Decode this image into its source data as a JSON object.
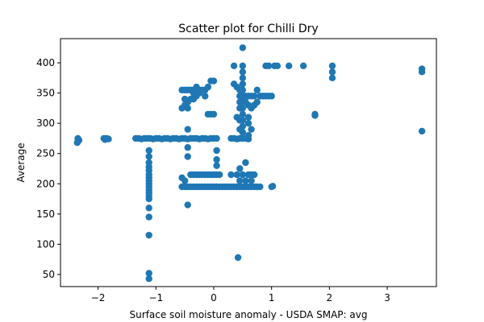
{
  "chart_data": {
    "type": "scatter",
    "title": "Scatter plot for Chilli Dry",
    "xlabel": "Surface soil moisture anomaly  - USDA SMAP: avg",
    "ylabel": "Average",
    "xlim": [
      -2.65,
      3.85
    ],
    "ylim": [
      30,
      440
    ],
    "xticks": [
      -2,
      -1,
      0,
      1,
      2,
      3
    ],
    "yticks": [
      50,
      100,
      150,
      200,
      250,
      300,
      350,
      400
    ],
    "grid": false,
    "marker_color": "#1f77b4",
    "series": [
      {
        "points": [
          [
            -2.35,
            270
          ],
          [
            -2.35,
            275
          ],
          [
            -2.33,
            272
          ],
          [
            -2.36,
            268
          ],
          [
            -1.9,
            275
          ],
          [
            -1.88,
            273
          ],
          [
            -1.85,
            275
          ],
          [
            -1.82,
            274
          ],
          [
            -1.35,
            275
          ],
          [
            -1.3,
            275
          ],
          [
            -1.25,
            274
          ],
          [
            -1.2,
            275
          ],
          [
            -1.15,
            275
          ],
          [
            -1.1,
            275
          ],
          [
            -1.05,
            274
          ],
          [
            -1.0,
            275
          ],
          [
            -0.95,
            275
          ],
          [
            -0.9,
            274
          ],
          [
            -0.85,
            275
          ],
          [
            -0.8,
            275
          ],
          [
            -0.75,
            274
          ],
          [
            -0.7,
            275
          ],
          [
            -0.65,
            275
          ],
          [
            -0.6,
            274
          ],
          [
            -0.55,
            275
          ],
          [
            -0.5,
            275
          ],
          [
            -0.45,
            274
          ],
          [
            -0.4,
            275
          ],
          [
            -0.35,
            275
          ],
          [
            -0.3,
            275
          ],
          [
            -0.25,
            274
          ],
          [
            -0.2,
            275
          ],
          [
            -0.15,
            275
          ],
          [
            -0.1,
            274
          ],
          [
            -0.05,
            275
          ],
          [
            0.0,
            275
          ],
          [
            0.05,
            275
          ],
          [
            0.3,
            275
          ],
          [
            0.35,
            275
          ],
          [
            0.4,
            274
          ],
          [
            0.45,
            275
          ],
          [
            0.5,
            275
          ],
          [
            0.55,
            275
          ],
          [
            0.6,
            274
          ],
          [
            -1.12,
            255
          ],
          [
            -1.12,
            245
          ],
          [
            -1.12,
            235
          ],
          [
            -1.12,
            228
          ],
          [
            -1.12,
            222
          ],
          [
            -1.12,
            215
          ],
          [
            -1.12,
            210
          ],
          [
            -1.12,
            205
          ],
          [
            -1.12,
            200
          ],
          [
            -1.12,
            195
          ],
          [
            -1.12,
            190
          ],
          [
            -1.12,
            185
          ],
          [
            -1.12,
            180
          ],
          [
            -1.12,
            175
          ],
          [
            -1.12,
            160
          ],
          [
            -1.12,
            145
          ],
          [
            -1.12,
            115
          ],
          [
            -1.12,
            52
          ],
          [
            -1.12,
            43
          ],
          [
            -0.55,
            195
          ],
          [
            -0.5,
            195
          ],
          [
            -0.45,
            195
          ],
          [
            -0.4,
            195
          ],
          [
            -0.35,
            195
          ],
          [
            -0.3,
            195
          ],
          [
            -0.25,
            195
          ],
          [
            -0.2,
            195
          ],
          [
            -0.15,
            195
          ],
          [
            -0.1,
            195
          ],
          [
            -0.05,
            195
          ],
          [
            0.0,
            195
          ],
          [
            0.05,
            195
          ],
          [
            0.1,
            195
          ],
          [
            0.15,
            195
          ],
          [
            0.2,
            195
          ],
          [
            0.25,
            195
          ],
          [
            0.3,
            195
          ],
          [
            0.35,
            195
          ],
          [
            0.4,
            195
          ],
          [
            0.45,
            195
          ],
          [
            0.5,
            195
          ],
          [
            0.55,
            195
          ],
          [
            0.6,
            195
          ],
          [
            0.65,
            195
          ],
          [
            0.7,
            195
          ],
          [
            0.75,
            195
          ],
          [
            0.8,
            195
          ],
          [
            1.0,
            195
          ],
          [
            1.02,
            196
          ],
          [
            -0.4,
            215
          ],
          [
            -0.35,
            215
          ],
          [
            -0.3,
            215
          ],
          [
            -0.25,
            215
          ],
          [
            -0.2,
            215
          ],
          [
            -0.15,
            215
          ],
          [
            -0.1,
            215
          ],
          [
            -0.05,
            215
          ],
          [
            0.0,
            215
          ],
          [
            0.05,
            215
          ],
          [
            0.1,
            215
          ],
          [
            0.3,
            215
          ],
          [
            0.4,
            215
          ],
          [
            0.5,
            215
          ],
          [
            0.6,
            215
          ],
          [
            0.7,
            215
          ],
          [
            -0.45,
            165
          ],
          [
            0.42,
            78
          ],
          [
            -0.55,
            210
          ],
          [
            -0.5,
            205
          ],
          [
            -0.45,
            245
          ],
          [
            -0.45,
            260
          ],
          [
            -0.45,
            290
          ],
          [
            0.05,
            255
          ],
          [
            0.05,
            240
          ],
          [
            0.05,
            230
          ],
          [
            0.45,
            225
          ],
          [
            0.55,
            235
          ],
          [
            0.65,
            215
          ],
          [
            0.65,
            205
          ],
          [
            0.55,
            205
          ],
          [
            0.45,
            205
          ],
          [
            -0.55,
            325
          ],
          [
            -0.5,
            330
          ],
          [
            -0.45,
            325
          ],
          [
            -0.45,
            335
          ],
          [
            -0.5,
            340
          ],
          [
            -0.4,
            340
          ],
          [
            -0.35,
            340
          ],
          [
            -0.55,
            355
          ],
          [
            -0.5,
            355
          ],
          [
            -0.45,
            355
          ],
          [
            -0.4,
            355
          ],
          [
            -0.35,
            355
          ],
          [
            -0.3,
            355
          ],
          [
            -0.25,
            355
          ],
          [
            -0.2,
            355
          ],
          [
            -0.15,
            355
          ],
          [
            -0.1,
            360
          ],
          [
            -0.05,
            370
          ],
          [
            0.0,
            370
          ],
          [
            -0.3,
            360
          ],
          [
            -0.35,
            350
          ],
          [
            -0.3,
            345
          ],
          [
            -0.25,
            350
          ],
          [
            -0.15,
            345
          ],
          [
            -0.1,
            315
          ],
          [
            -0.05,
            315
          ],
          [
            0.0,
            315
          ],
          [
            0.35,
            395
          ],
          [
            0.35,
            365
          ],
          [
            0.4,
            360
          ],
          [
            0.45,
            355
          ],
          [
            0.45,
            345
          ],
          [
            0.45,
            335
          ],
          [
            0.45,
            325
          ],
          [
            0.45,
            305
          ],
          [
            0.45,
            290
          ],
          [
            0.4,
            310
          ],
          [
            0.5,
            425
          ],
          [
            0.5,
            395
          ],
          [
            0.5,
            385
          ],
          [
            0.5,
            375
          ],
          [
            0.5,
            365
          ],
          [
            0.5,
            355
          ],
          [
            0.5,
            345
          ],
          [
            0.5,
            335
          ],
          [
            0.5,
            325
          ],
          [
            0.5,
            315
          ],
          [
            0.5,
            305
          ],
          [
            0.5,
            295
          ],
          [
            0.5,
            285
          ],
          [
            0.5,
            275
          ],
          [
            0.55,
            345
          ],
          [
            0.6,
            345
          ],
          [
            0.65,
            345
          ],
          [
            0.7,
            345
          ],
          [
            0.75,
            355
          ],
          [
            0.8,
            345
          ],
          [
            0.85,
            345
          ],
          [
            0.9,
            345
          ],
          [
            0.95,
            345
          ],
          [
            1.0,
            345
          ],
          [
            0.55,
            335
          ],
          [
            0.6,
            330
          ],
          [
            0.65,
            325
          ],
          [
            0.7,
            330
          ],
          [
            0.75,
            335
          ],
          [
            0.6,
            310
          ],
          [
            0.6,
            300
          ],
          [
            0.65,
            290
          ],
          [
            0.6,
            280
          ],
          [
            0.9,
            395
          ],
          [
            0.95,
            395
          ],
          [
            1.05,
            395
          ],
          [
            1.1,
            395
          ],
          [
            1.3,
            395
          ],
          [
            1.55,
            395
          ],
          [
            1.75,
            315
          ],
          [
            1.75,
            313
          ],
          [
            2.05,
            395
          ],
          [
            2.05,
            385
          ],
          [
            2.05,
            375
          ],
          [
            3.6,
            390
          ],
          [
            3.6,
            385
          ],
          [
            3.6,
            287
          ]
        ]
      }
    ]
  }
}
